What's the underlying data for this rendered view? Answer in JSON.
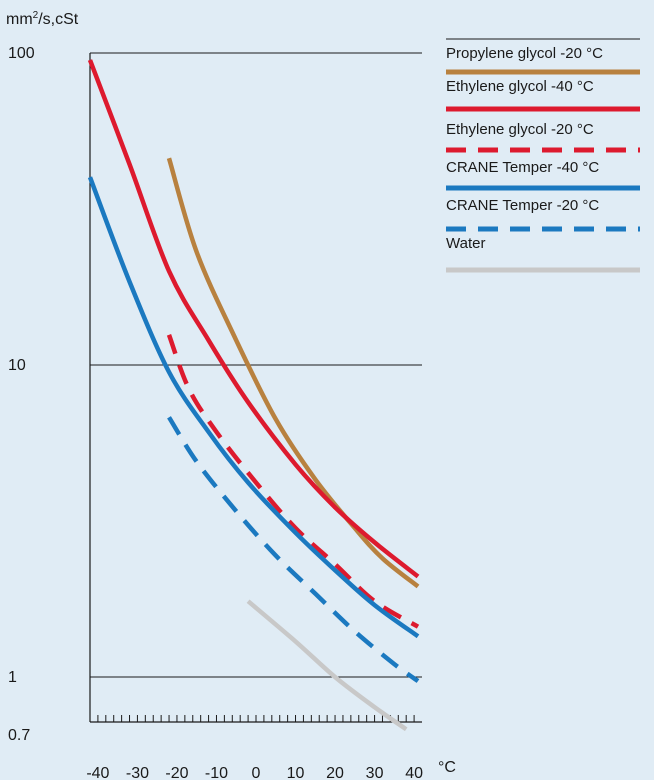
{
  "chart_data": {
    "type": "line",
    "ylabel": "mm",
    "ylabel_sup": "2",
    "ylabel_suffix": "/s,cSt",
    "xlabel": "°C",
    "y_scale": "log",
    "ylim": [
      0.7,
      100
    ],
    "xlim": [
      -42,
      42
    ],
    "y_ticks": [
      {
        "value": 100,
        "label": "100"
      },
      {
        "value": 10,
        "label": "10"
      },
      {
        "value": 1,
        "label": "1"
      },
      {
        "value": 0.7,
        "label": "0.7"
      }
    ],
    "x_ticks": [
      {
        "value": -40,
        "label": "-40"
      },
      {
        "value": -30,
        "label": "-30"
      },
      {
        "value": -20,
        "label": "-20"
      },
      {
        "value": -10,
        "label": "-10"
      },
      {
        "value": 0,
        "label": "0"
      },
      {
        "value": 10,
        "label": "10"
      },
      {
        "value": 20,
        "label": "20"
      },
      {
        "value": 30,
        "label": "30"
      },
      {
        "value": 40,
        "label": "40"
      }
    ],
    "gridlines_y": [
      100,
      10,
      1
    ],
    "legend_position": "right",
    "series": [
      {
        "name": "Propylene glycol -20 °C",
        "color": "#b8813f",
        "dashed": false,
        "points": [
          [
            -22,
            46
          ],
          [
            -15,
            23
          ],
          [
            -5,
            12
          ],
          [
            5,
            6.7
          ],
          [
            15,
            4.3
          ],
          [
            25,
            3.0
          ],
          [
            32,
            2.4
          ],
          [
            41,
            1.95
          ]
        ]
      },
      {
        "name": "Ethylene glycol -40 °C",
        "color": "#dd1a2e",
        "dashed": false,
        "points": [
          [
            -42,
            95
          ],
          [
            -32,
            44
          ],
          [
            -22,
            20
          ],
          [
            -12,
            12
          ],
          [
            -2,
            7.6
          ],
          [
            10,
            4.8
          ],
          [
            20,
            3.5
          ],
          [
            30,
            2.7
          ],
          [
            41,
            2.1
          ]
        ]
      },
      {
        "name": "Ethylene glycol -20 °C",
        "color": "#dd1a2e",
        "dashed": true,
        "points": [
          [
            -22,
            12.5
          ],
          [
            -17,
            8.4
          ],
          [
            -10,
            6.1
          ],
          [
            0,
            4.2
          ],
          [
            10,
            3.0
          ],
          [
            20,
            2.3
          ],
          [
            30,
            1.75
          ],
          [
            41,
            1.45
          ]
        ]
      },
      {
        "name": "CRANE Temper -40 °C",
        "color": "#1b79c0",
        "dashed": false,
        "points": [
          [
            -42,
            40
          ],
          [
            -32,
            18.5
          ],
          [
            -22,
            9.5
          ],
          [
            -12,
            6.1
          ],
          [
            -2,
            4.2
          ],
          [
            10,
            2.9
          ],
          [
            20,
            2.2
          ],
          [
            30,
            1.7
          ],
          [
            41,
            1.35
          ]
        ]
      },
      {
        "name": "CRANE Temper -20 °C",
        "color": "#1b79c0",
        "dashed": true,
        "points": [
          [
            -22,
            6.8
          ],
          [
            -15,
            4.9
          ],
          [
            -5,
            3.4
          ],
          [
            5,
            2.45
          ],
          [
            15,
            1.85
          ],
          [
            25,
            1.4
          ],
          [
            35,
            1.1
          ],
          [
            41,
            0.97
          ]
        ]
      },
      {
        "name": "Water",
        "color": "#c8c8c8",
        "dashed": false,
        "points": [
          [
            -2,
            1.75
          ],
          [
            10,
            1.3
          ],
          [
            20,
            1.0
          ],
          [
            30,
            0.8
          ],
          [
            38,
            0.68
          ]
        ]
      }
    ]
  }
}
